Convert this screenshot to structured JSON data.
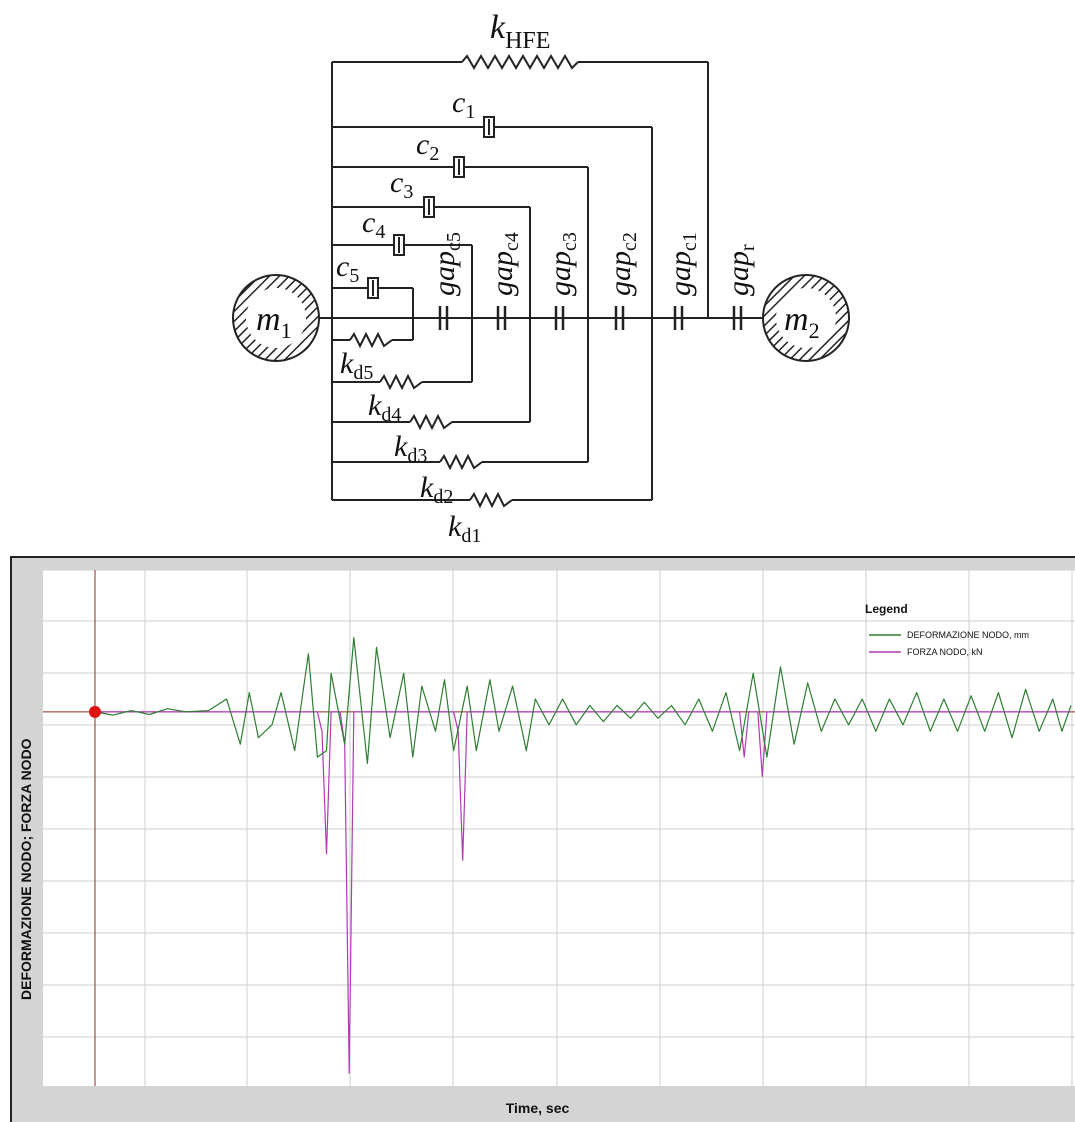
{
  "diagram": {
    "masses": [
      {
        "sym": "m",
        "sub": "1"
      },
      {
        "sym": "m",
        "sub": "2"
      }
    ],
    "springs": [
      {
        "sym": "k",
        "sub": "HFE"
      },
      {
        "sym": "k",
        "sub": "d1"
      },
      {
        "sym": "k",
        "sub": "d2"
      },
      {
        "sym": "k",
        "sub": "d3"
      },
      {
        "sym": "k",
        "sub": "d4"
      },
      {
        "sym": "k",
        "sub": "d5"
      }
    ],
    "dampers": [
      {
        "sym": "c",
        "sub": "1"
      },
      {
        "sym": "c",
        "sub": "2"
      },
      {
        "sym": "c",
        "sub": "3"
      },
      {
        "sym": "c",
        "sub": "4"
      },
      {
        "sym": "c",
        "sub": "5"
      }
    ],
    "gaps": [
      {
        "sym": "gap",
        "sub": "c5"
      },
      {
        "sym": "gap",
        "sub": "c4"
      },
      {
        "sym": "gap",
        "sub": "c3"
      },
      {
        "sym": "gap",
        "sub": "c2"
      },
      {
        "sym": "gap",
        "sub": "c1"
      },
      {
        "sym": "gap",
        "sub": "r"
      }
    ]
  },
  "chart": {
    "ylabel": "DEFORMAZIONE NODO; FORZA NODO",
    "xlabel": "Time,  sec",
    "legend_title": "Legend",
    "colors": {
      "deformation": "#2e7d32",
      "force": "#b03ab8",
      "cursor": "#8b2f1f",
      "marker": "#e01010"
    }
  },
  "chart_data": {
    "type": "line",
    "xlabel": "Time,  sec",
    "ylabel": "DEFORMAZIONE NODO; FORZA NODO",
    "grid": true,
    "legend": "top-right",
    "ylim": [
      -5.8,
      2.2
    ],
    "series": [
      {
        "name": "DEFORMAZIONE NODO, mm",
        "points": [
          [
            0,
            0
          ],
          [
            0.4,
            -0.05
          ],
          [
            0.8,
            0.02
          ],
          [
            1.2,
            -0.04
          ],
          [
            1.6,
            0.05
          ],
          [
            2.0,
            0.0
          ],
          [
            2.5,
            0.02
          ],
          [
            2.9,
            0.2
          ],
          [
            3.2,
            -0.5
          ],
          [
            3.4,
            0.3
          ],
          [
            3.6,
            -0.4
          ],
          [
            3.9,
            -0.2
          ],
          [
            4.1,
            0.3
          ],
          [
            4.4,
            -0.6
          ],
          [
            4.7,
            0.9
          ],
          [
            4.9,
            -0.7
          ],
          [
            5.1,
            -0.6
          ],
          [
            5.2,
            0.6
          ],
          [
            5.5,
            -0.5
          ],
          [
            5.7,
            1.15
          ],
          [
            6.0,
            -0.8
          ],
          [
            6.2,
            1.0
          ],
          [
            6.5,
            -0.4
          ],
          [
            6.8,
            0.6
          ],
          [
            7.0,
            -0.7
          ],
          [
            7.2,
            0.4
          ],
          [
            7.5,
            -0.3
          ],
          [
            7.7,
            0.5
          ],
          [
            7.9,
            -0.6
          ],
          [
            8.2,
            0.4
          ],
          [
            8.4,
            -0.6
          ],
          [
            8.7,
            0.5
          ],
          [
            8.9,
            -0.3
          ],
          [
            9.2,
            0.4
          ],
          [
            9.5,
            -0.6
          ],
          [
            9.7,
            0.2
          ],
          [
            10.0,
            -0.2
          ],
          [
            10.3,
            0.2
          ],
          [
            10.6,
            -0.2
          ],
          [
            10.9,
            0.1
          ],
          [
            11.2,
            -0.15
          ],
          [
            11.5,
            0.1
          ],
          [
            11.8,
            -0.1
          ],
          [
            12.1,
            0.15
          ],
          [
            12.4,
            -0.1
          ],
          [
            12.7,
            0.1
          ],
          [
            13.0,
            -0.2
          ],
          [
            13.3,
            0.2
          ],
          [
            13.6,
            -0.3
          ],
          [
            13.9,
            0.3
          ],
          [
            14.2,
            -0.6
          ],
          [
            14.5,
            0.6
          ],
          [
            14.8,
            -0.7
          ],
          [
            15.1,
            0.7
          ],
          [
            15.4,
            -0.5
          ],
          [
            15.7,
            0.45
          ],
          [
            16.0,
            -0.3
          ],
          [
            16.3,
            0.2
          ],
          [
            16.6,
            -0.2
          ],
          [
            16.9,
            0.2
          ],
          [
            17.2,
            -0.3
          ],
          [
            17.5,
            0.2
          ],
          [
            17.8,
            -0.2
          ],
          [
            18.1,
            0.3
          ],
          [
            18.4,
            -0.3
          ],
          [
            18.7,
            0.2
          ],
          [
            19.0,
            -0.3
          ],
          [
            19.3,
            0.25
          ],
          [
            19.6,
            -0.3
          ],
          [
            19.9,
            0.3
          ],
          [
            20.2,
            -0.4
          ],
          [
            20.5,
            0.35
          ],
          [
            20.8,
            -0.3
          ],
          [
            21.1,
            0.2
          ],
          [
            21.3,
            -0.3
          ],
          [
            21.5,
            0.1
          ]
        ]
      },
      {
        "name": "FORZA NODO, kN",
        "points": [
          [
            0,
            0
          ],
          [
            4.9,
            0
          ],
          [
            5.0,
            -0.3
          ],
          [
            5.1,
            -2.2
          ],
          [
            5.2,
            0
          ],
          [
            5.4,
            0
          ],
          [
            5.5,
            -0.5
          ],
          [
            5.6,
            -5.6
          ],
          [
            5.7,
            0
          ],
          [
            7.9,
            0
          ],
          [
            8.0,
            -0.3
          ],
          [
            8.1,
            -2.3
          ],
          [
            8.2,
            0
          ],
          [
            14.2,
            0
          ],
          [
            14.3,
            -0.7
          ],
          [
            14.4,
            0
          ],
          [
            14.6,
            0
          ],
          [
            14.7,
            -1.0
          ],
          [
            14.8,
            0
          ],
          [
            21.5,
            0
          ]
        ]
      }
    ]
  }
}
